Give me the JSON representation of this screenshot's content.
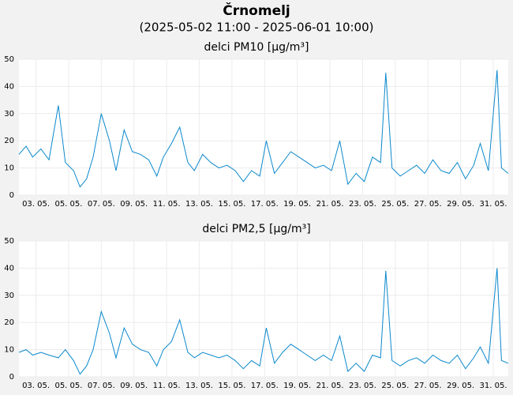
{
  "title": "Črnomelj",
  "subtitle": "(2025-05-02 11:00 - 2025-06-01 10:00)",
  "chart_data": [
    {
      "type": "line",
      "title": "delci PM10 [µg/m³]",
      "color": "#0a88cc",
      "grid": true,
      "x": [
        2.458,
        2.9,
        3.3,
        3.8,
        4.3,
        4.87,
        5.3,
        5.8,
        6.2,
        6.6,
        7.0,
        7.5,
        8.0,
        8.4,
        8.9,
        9.4,
        9.9,
        10.4,
        10.9,
        11.3,
        11.8,
        12.3,
        12.8,
        13.2,
        13.7,
        14.2,
        14.7,
        15.2,
        15.7,
        16.2,
        16.7,
        17.2,
        17.6,
        18.1,
        18.6,
        19.1,
        19.6,
        20.1,
        20.6,
        21.1,
        21.6,
        22.1,
        22.6,
        23.1,
        23.6,
        24.1,
        24.6,
        24.92,
        25.3,
        25.8,
        26.3,
        26.8,
        27.3,
        27.8,
        28.3,
        28.8,
        29.3,
        29.8,
        30.3,
        30.7,
        31.2,
        31.73,
        32.0,
        32.417
      ],
      "values": [
        15,
        18,
        14,
        17,
        13,
        33,
        12,
        9,
        3,
        6,
        14,
        30,
        20,
        9,
        24,
        16,
        15,
        13,
        7,
        14,
        19,
        25,
        12,
        9,
        15,
        12,
        10,
        11,
        9,
        5,
        9,
        7,
        20,
        8,
        12,
        16,
        14,
        12,
        10,
        11,
        9,
        20,
        4,
        8,
        5,
        14,
        12,
        45,
        10,
        7,
        9,
        11,
        8,
        13,
        9,
        8,
        12,
        6,
        11,
        19,
        9,
        46,
        10,
        8
      ],
      "xlim": [
        2.458,
        32.417
      ],
      "ylim": [
        0,
        50
      ],
      "yticks": [
        0,
        10,
        20,
        30,
        40,
        50
      ],
      "xticks": [
        {
          "value": 3.5,
          "label": "03. 05."
        },
        {
          "value": 5.5,
          "label": "05. 05."
        },
        {
          "value": 7.5,
          "label": "07. 05."
        },
        {
          "value": 9.5,
          "label": "09. 05."
        },
        {
          "value": 11.5,
          "label": "11. 05."
        },
        {
          "value": 13.5,
          "label": "13. 05."
        },
        {
          "value": 15.5,
          "label": "15. 05."
        },
        {
          "value": 17.5,
          "label": "17. 05."
        },
        {
          "value": 19.5,
          "label": "19. 05."
        },
        {
          "value": 21.5,
          "label": "21. 05."
        },
        {
          "value": 23.5,
          "label": "23. 05."
        },
        {
          "value": 25.5,
          "label": "25. 05."
        },
        {
          "value": 27.5,
          "label": "27. 05."
        },
        {
          "value": 29.5,
          "label": "29. 05."
        },
        {
          "value": 31.5,
          "label": "31. 05."
        }
      ]
    },
    {
      "type": "line",
      "title": "delci PM2,5 [µg/m³]",
      "color": "#0a88cc",
      "grid": true,
      "x": [
        2.458,
        2.9,
        3.3,
        3.8,
        4.3,
        4.87,
        5.3,
        5.8,
        6.2,
        6.6,
        7.0,
        7.5,
        8.0,
        8.4,
        8.9,
        9.4,
        9.9,
        10.4,
        10.9,
        11.3,
        11.8,
        12.3,
        12.8,
        13.2,
        13.7,
        14.2,
        14.7,
        15.2,
        15.7,
        16.2,
        16.7,
        17.2,
        17.6,
        18.1,
        18.6,
        19.1,
        19.6,
        20.1,
        20.6,
        21.1,
        21.6,
        22.1,
        22.6,
        23.1,
        23.6,
        24.1,
        24.6,
        24.92,
        25.3,
        25.8,
        26.3,
        26.8,
        27.3,
        27.8,
        28.3,
        28.8,
        29.3,
        29.8,
        30.3,
        30.7,
        31.2,
        31.73,
        32.0,
        32.417
      ],
      "values": [
        9,
        10,
        8,
        9,
        8,
        7,
        10,
        6,
        1,
        4,
        10,
        24,
        16,
        7,
        18,
        12,
        10,
        9,
        4,
        10,
        13,
        21,
        9,
        7,
        9,
        8,
        7,
        8,
        6,
        3,
        6,
        4,
        18,
        5,
        9,
        12,
        10,
        8,
        6,
        8,
        6,
        15,
        2,
        5,
        2,
        8,
        7,
        39,
        6,
        4,
        6,
        7,
        5,
        8,
        6,
        5,
        8,
        3,
        7,
        11,
        5,
        40,
        6,
        5
      ],
      "xlim": [
        2.458,
        32.417
      ],
      "ylim": [
        0,
        50
      ],
      "yticks": [
        0,
        10,
        20,
        30,
        40,
        50
      ],
      "xticks": [
        {
          "value": 3.5,
          "label": "03. 05."
        },
        {
          "value": 5.5,
          "label": "05. 05."
        },
        {
          "value": 7.5,
          "label": "07. 05."
        },
        {
          "value": 9.5,
          "label": "09. 05."
        },
        {
          "value": 11.5,
          "label": "11. 05."
        },
        {
          "value": 13.5,
          "label": "13. 05."
        },
        {
          "value": 15.5,
          "label": "15. 05."
        },
        {
          "value": 17.5,
          "label": "17. 05."
        },
        {
          "value": 19.5,
          "label": "19. 05."
        },
        {
          "value": 21.5,
          "label": "21. 05."
        },
        {
          "value": 23.5,
          "label": "23. 05."
        },
        {
          "value": 25.5,
          "label": "25. 05."
        },
        {
          "value": 27.5,
          "label": "27. 05."
        },
        {
          "value": 29.5,
          "label": "29. 05."
        },
        {
          "value": 31.5,
          "label": "31. 05."
        }
      ]
    }
  ]
}
